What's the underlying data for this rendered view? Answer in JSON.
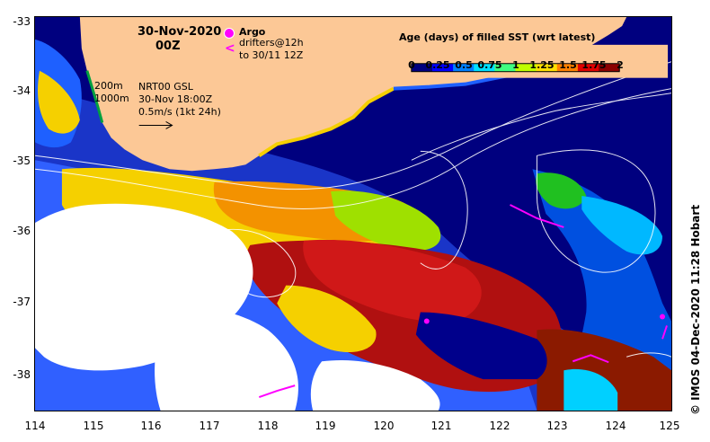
{
  "title": {
    "date": "30-Nov-2020",
    "time": "00Z"
  },
  "argo": {
    "label": "Argo",
    "marker_color": "#ff00ff"
  },
  "drifters": {
    "line1": "drifters@12h",
    "line2": "to 30/11 12Z",
    "symbol": "<",
    "color": "#ff00ff"
  },
  "isobaths": {
    "shallow": "200m",
    "deep": "1000m"
  },
  "current_info": {
    "line1": "NRT00 GSL",
    "line2": "30-Nov 18:00Z",
    "line3": "0.5m/s (1kt 24h)"
  },
  "colorbar": {
    "title": "Age (days) of filled SST (wrt latest)",
    "tick_labels": [
      "0",
      "0.25",
      "0.5",
      "0.75",
      "1",
      "1.25",
      "1.5",
      "1.75",
      "2"
    ],
    "colors": [
      "#00007f",
      "#0000ff",
      "#0080ff",
      "#00e0ff",
      "#40ff80",
      "#c0ff00",
      "#ffe000",
      "#ff8000",
      "#e00000",
      "#8b0000"
    ]
  },
  "axes": {
    "lat_labels": [
      "-33",
      "-34",
      "-35",
      "-36",
      "-37",
      "-38"
    ],
    "lon_labels": [
      "114",
      "115",
      "116",
      "117",
      "118",
      "119",
      "120",
      "121",
      "122",
      "123",
      "124",
      "125"
    ]
  },
  "credit": "©  IMOS 04-Dec-2020 11:28 Hobart",
  "colors": {
    "land": "#fcc896",
    "deep_ocean": "#00007f",
    "no_data": "#ffffff",
    "streamline": "#ffffff"
  }
}
